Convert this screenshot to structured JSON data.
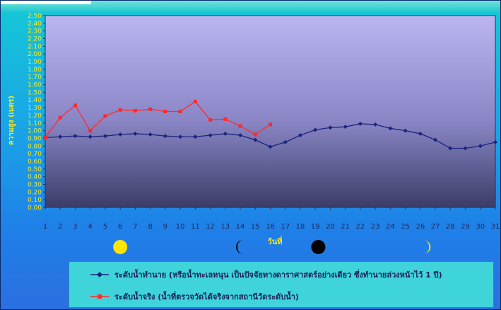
{
  "chart_data": {
    "type": "line",
    "title": "",
    "xlabel": "วันที่",
    "ylabel": "ความสูง (เมตร)",
    "x": [
      1,
      2,
      3,
      4,
      5,
      6,
      7,
      8,
      9,
      10,
      11,
      12,
      13,
      14,
      15,
      16,
      17,
      18,
      19,
      20,
      21,
      22,
      23,
      24,
      25,
      26,
      27,
      28,
      29,
      30,
      31
    ],
    "xlim": [
      1,
      31
    ],
    "ylim": [
      0,
      2.5
    ],
    "y_ticks": [
      "0.00",
      "0.10",
      "0.20",
      "0.30",
      "0.40",
      "0.50",
      "0.60",
      "0.70",
      "0.80",
      "0.90",
      "1.00",
      "1.10",
      "1.20",
      "1.30",
      "1.40",
      "1.50",
      "1.60",
      "1.70",
      "1.80",
      "1.90",
      "2.00",
      "2.10",
      "2.20",
      "2.30",
      "2.40",
      "2.50"
    ],
    "legend_position": "bottom",
    "series": [
      {
        "name": "ระดับน้ำทำนาย (หรือน้ำทะเลหนุน เป็นปัจจัยทางดาราศาสตร์อย่างเดียว ซึ่งทำนายล่วงหน้าไว้ 1 ปี)",
        "color": "#1a237e",
        "marker": "diamond",
        "values": [
          0.91,
          0.92,
          0.93,
          0.92,
          0.93,
          0.95,
          0.96,
          0.95,
          0.93,
          0.92,
          0.92,
          0.94,
          0.96,
          0.94,
          0.88,
          0.79,
          0.85,
          0.94,
          1.01,
          1.04,
          1.05,
          1.09,
          1.08,
          1.03,
          1.0,
          0.96,
          0.88,
          0.77,
          0.77,
          0.8,
          0.85
        ]
      },
      {
        "name": "ระดับน้ำจริง (น้ำที่ตรวจวัดได้จริงจากสถานีวัดระดับน้ำ)",
        "color": "#ff2a2a",
        "marker": "square",
        "values": [
          0.91,
          1.17,
          1.33,
          1.0,
          1.19,
          1.27,
          1.26,
          1.28,
          1.25,
          1.25,
          1.38,
          1.14,
          1.15,
          1.06,
          0.95,
          1.08,
          null,
          null,
          null,
          null,
          null,
          null,
          null,
          null,
          null,
          null,
          null,
          null,
          null,
          null,
          null
        ]
      }
    ],
    "moon_phases": [
      {
        "day": 6,
        "phase": "full-moon"
      },
      {
        "day": 14,
        "phase": "last-quarter"
      },
      {
        "day": 19.2,
        "phase": "new-moon"
      },
      {
        "day": 26.4,
        "phase": "first-quarter"
      }
    ],
    "colors": {
      "plot_top": "#b9b5f0",
      "plot_bottom": "#3d3f6a",
      "axis_text": "#f7e826",
      "legend_bg": "#3fd4d9"
    }
  }
}
